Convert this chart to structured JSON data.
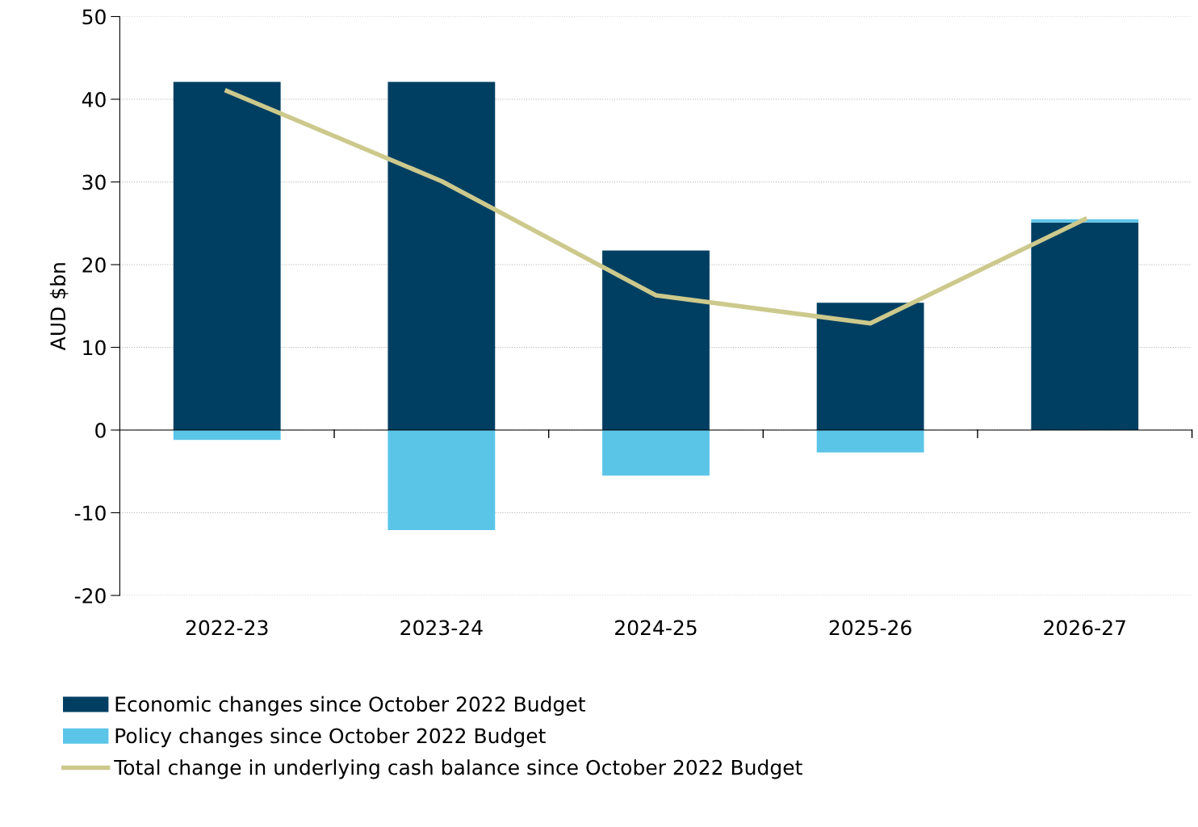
{
  "chart_data": {
    "type": "bar",
    "stacked": true,
    "ylabel": "AUD $bn",
    "categories": [
      "2022-23",
      "2023-24",
      "2024-25",
      "2025-26",
      "2026-27"
    ],
    "series": [
      {
        "name": "Economic changes since October 2022 Budget",
        "color": "#003f62",
        "values": [
          42.1,
          42.1,
          21.7,
          15.4,
          25.1
        ]
      },
      {
        "name": "Policy changes since October 2022 Budget",
        "color": "#5bc5e8",
        "values": [
          -1.2,
          -12.1,
          -5.5,
          -2.7,
          0.4
        ]
      },
      {
        "name": "Total change in underlying cash balance since October 2022 Budget",
        "type": "line",
        "color": "#cdc98c",
        "values": [
          41.0,
          30.1,
          16.3,
          12.9,
          25.5
        ]
      }
    ],
    "ylim": [
      -20,
      50
    ],
    "yticks": [
      -20,
      -10,
      0,
      10,
      20,
      30,
      40,
      50
    ],
    "grid": "y",
    "legend": "bottom",
    "marker": "none",
    "line_style": "solid"
  }
}
